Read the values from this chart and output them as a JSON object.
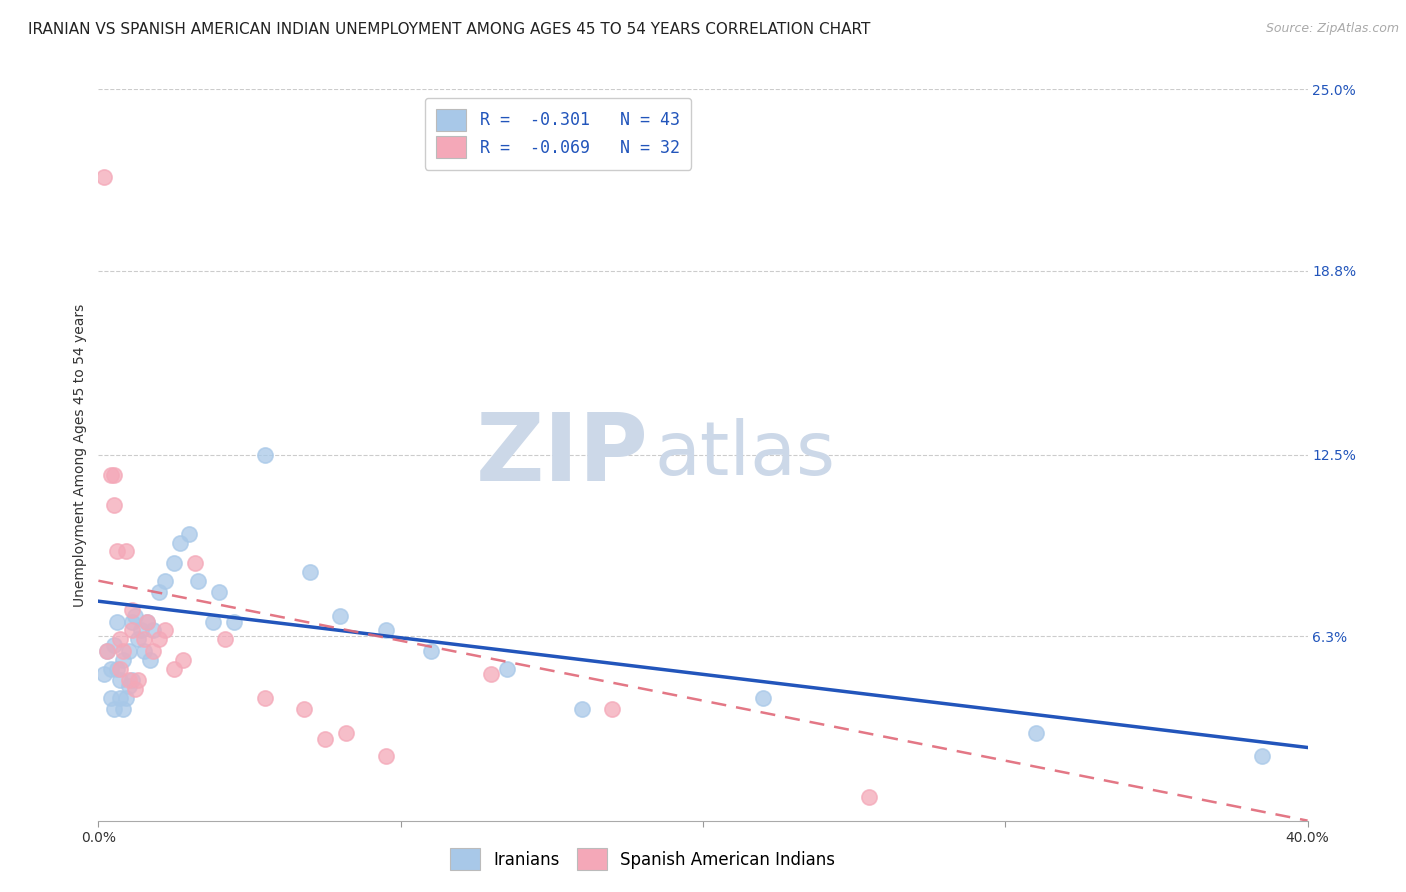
{
  "title": "IRANIAN VS SPANISH AMERICAN INDIAN UNEMPLOYMENT AMONG AGES 45 TO 54 YEARS CORRELATION CHART",
  "source": "Source: ZipAtlas.com",
  "ylabel": "Unemployment Among Ages 45 to 54 years",
  "xlim": [
    0.0,
    0.4
  ],
  "ylim": [
    0.0,
    0.25
  ],
  "xtick_vals": [
    0.0,
    0.1,
    0.2,
    0.3,
    0.4
  ],
  "xtick_labels": [
    "0.0%",
    "",
    "",
    "",
    "40.0%"
  ],
  "ytick_vals": [
    0.063,
    0.125,
    0.188,
    0.25
  ],
  "ytick_labels": [
    "6.3%",
    "12.5%",
    "18.8%",
    "25.0%"
  ],
  "legend_line1": "R =  -0.301   N = 43",
  "legend_line2": "R =  -0.069   N = 32",
  "iranians_color": "#a8c8e8",
  "spanish_color": "#f4a8b8",
  "line_blue_color": "#2255bb",
  "line_pink_color": "#e06878",
  "watermark_color": "#ccd8e8",
  "background_color": "#ffffff",
  "grid_color": "#cccccc",
  "iranians_x": [
    0.002,
    0.003,
    0.004,
    0.004,
    0.005,
    0.005,
    0.006,
    0.006,
    0.007,
    0.007,
    0.008,
    0.008,
    0.009,
    0.01,
    0.01,
    0.011,
    0.011,
    0.012,
    0.013,
    0.014,
    0.015,
    0.016,
    0.017,
    0.018,
    0.02,
    0.022,
    0.025,
    0.027,
    0.03,
    0.033,
    0.038,
    0.04,
    0.045,
    0.055,
    0.07,
    0.08,
    0.095,
    0.11,
    0.135,
    0.16,
    0.22,
    0.31,
    0.385
  ],
  "iranians_y": [
    0.05,
    0.058,
    0.052,
    0.042,
    0.06,
    0.038,
    0.068,
    0.052,
    0.048,
    0.042,
    0.055,
    0.038,
    0.042,
    0.058,
    0.046,
    0.068,
    0.048,
    0.07,
    0.062,
    0.065,
    0.058,
    0.068,
    0.055,
    0.065,
    0.078,
    0.082,
    0.088,
    0.095,
    0.098,
    0.082,
    0.068,
    0.078,
    0.068,
    0.125,
    0.085,
    0.07,
    0.065,
    0.058,
    0.052,
    0.038,
    0.042,
    0.03,
    0.022
  ],
  "spanish_x": [
    0.002,
    0.003,
    0.004,
    0.005,
    0.005,
    0.006,
    0.007,
    0.007,
    0.008,
    0.009,
    0.01,
    0.011,
    0.011,
    0.012,
    0.013,
    0.015,
    0.016,
    0.018,
    0.02,
    0.022,
    0.025,
    0.028,
    0.032,
    0.042,
    0.055,
    0.068,
    0.075,
    0.082,
    0.095,
    0.13,
    0.17,
    0.255
  ],
  "spanish_y": [
    0.22,
    0.058,
    0.118,
    0.108,
    0.118,
    0.092,
    0.052,
    0.062,
    0.058,
    0.092,
    0.048,
    0.065,
    0.072,
    0.045,
    0.048,
    0.062,
    0.068,
    0.058,
    0.062,
    0.065,
    0.052,
    0.055,
    0.088,
    0.062,
    0.042,
    0.038,
    0.028,
    0.03,
    0.022,
    0.05,
    0.038,
    0.008
  ],
  "title_fontsize": 11,
  "ylabel_fontsize": 10,
  "tick_fontsize": 10,
  "legend_fontsize": 12
}
